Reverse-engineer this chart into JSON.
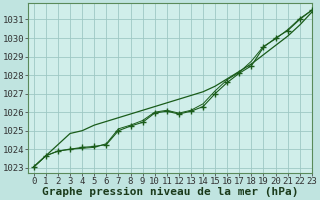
{
  "title": "Graphe pression niveau de la mer (hPa)",
  "background_color": "#c0e4e0",
  "plot_bg_color": "#d0eeea",
  "grid_color": "#9ec8c4",
  "line_color": "#1a5c1a",
  "xlim": [
    -0.5,
    23
  ],
  "ylim": [
    1022.7,
    1031.9
  ],
  "yticks": [
    1023,
    1024,
    1025,
    1026,
    1027,
    1028,
    1029,
    1030,
    1031
  ],
  "xticks": [
    0,
    1,
    2,
    3,
    4,
    5,
    6,
    7,
    8,
    9,
    10,
    11,
    12,
    13,
    14,
    15,
    16,
    17,
    18,
    19,
    20,
    21,
    22,
    23
  ],
  "series_trend": [
    1023.05,
    1023.65,
    1024.25,
    1024.85,
    1025.0,
    1025.3,
    1025.5,
    1025.7,
    1025.9,
    1026.1,
    1026.3,
    1026.5,
    1026.7,
    1026.9,
    1027.1,
    1027.4,
    1027.8,
    1028.2,
    1028.6,
    1029.1,
    1029.6,
    1030.1,
    1030.7,
    1031.4
  ],
  "series_markers": [
    1023.05,
    1023.65,
    1023.9,
    1024.0,
    1024.1,
    1024.15,
    1024.25,
    1025.0,
    1025.25,
    1025.45,
    1025.95,
    1026.05,
    1025.9,
    1026.05,
    1026.3,
    1027.0,
    1027.6,
    1028.1,
    1028.5,
    1029.5,
    1030.0,
    1030.4,
    1031.0,
    1031.5
  ],
  "series_smooth": [
    1023.05,
    1023.65,
    1023.9,
    1024.0,
    1024.05,
    1024.1,
    1024.3,
    1025.1,
    1025.3,
    1025.55,
    1026.0,
    1026.1,
    1025.95,
    1026.1,
    1026.45,
    1027.15,
    1027.75,
    1028.15,
    1028.75,
    1029.55,
    1029.95,
    1030.45,
    1031.05,
    1031.5
  ],
  "title_fontsize": 8,
  "tick_fontsize": 6.5
}
